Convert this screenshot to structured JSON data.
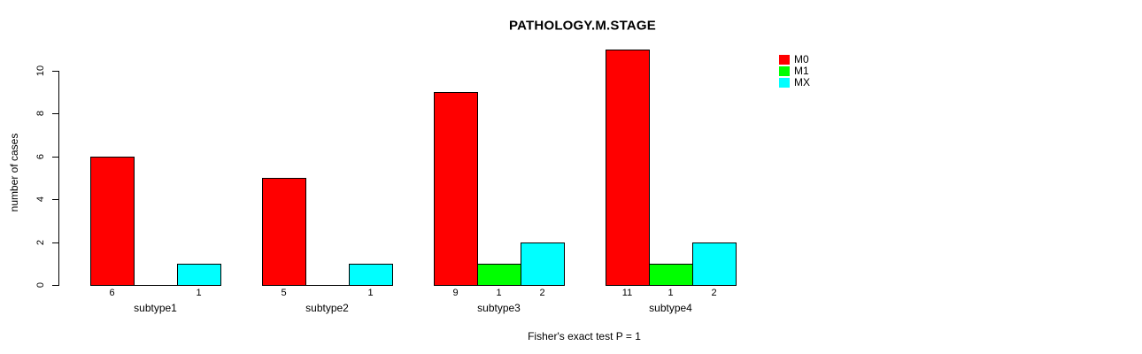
{
  "title": "PATHOLOGY.M.STAGE",
  "caption": "Fisher's exact test P = 1",
  "chart_data": {
    "type": "bar",
    "title": "PATHOLOGY.M.STAGE",
    "xlabel": "Fisher's exact test P = 1",
    "ylabel": "number of cases",
    "categories": [
      "subtype1",
      "subtype2",
      "subtype3",
      "subtype4"
    ],
    "series": [
      {
        "name": "M0",
        "color": "#ff0000",
        "values": [
          6,
          5,
          9,
          11
        ]
      },
      {
        "name": "M1",
        "color": "#00ff00",
        "values": [
          0,
          0,
          1,
          1
        ]
      },
      {
        "name": "MX",
        "color": "#00ffff",
        "values": [
          1,
          1,
          2,
          2
        ]
      }
    ],
    "yticks": [
      0,
      2,
      4,
      6,
      8,
      10
    ],
    "ylim": [
      0,
      11
    ],
    "bar_value_labels": {
      "subtype1": [
        "6",
        "",
        "1"
      ],
      "subtype2": [
        "5",
        "",
        "1"
      ],
      "subtype3": [
        "9",
        "1",
        "2"
      ],
      "subtype4": [
        "11",
        "1",
        "2"
      ]
    },
    "legend_entries": [
      "M0",
      "M1",
      "MX"
    ],
    "legend_position": "top-right",
    "grid": false,
    "background": "#ffffff",
    "bar_border_color": "#000000"
  }
}
